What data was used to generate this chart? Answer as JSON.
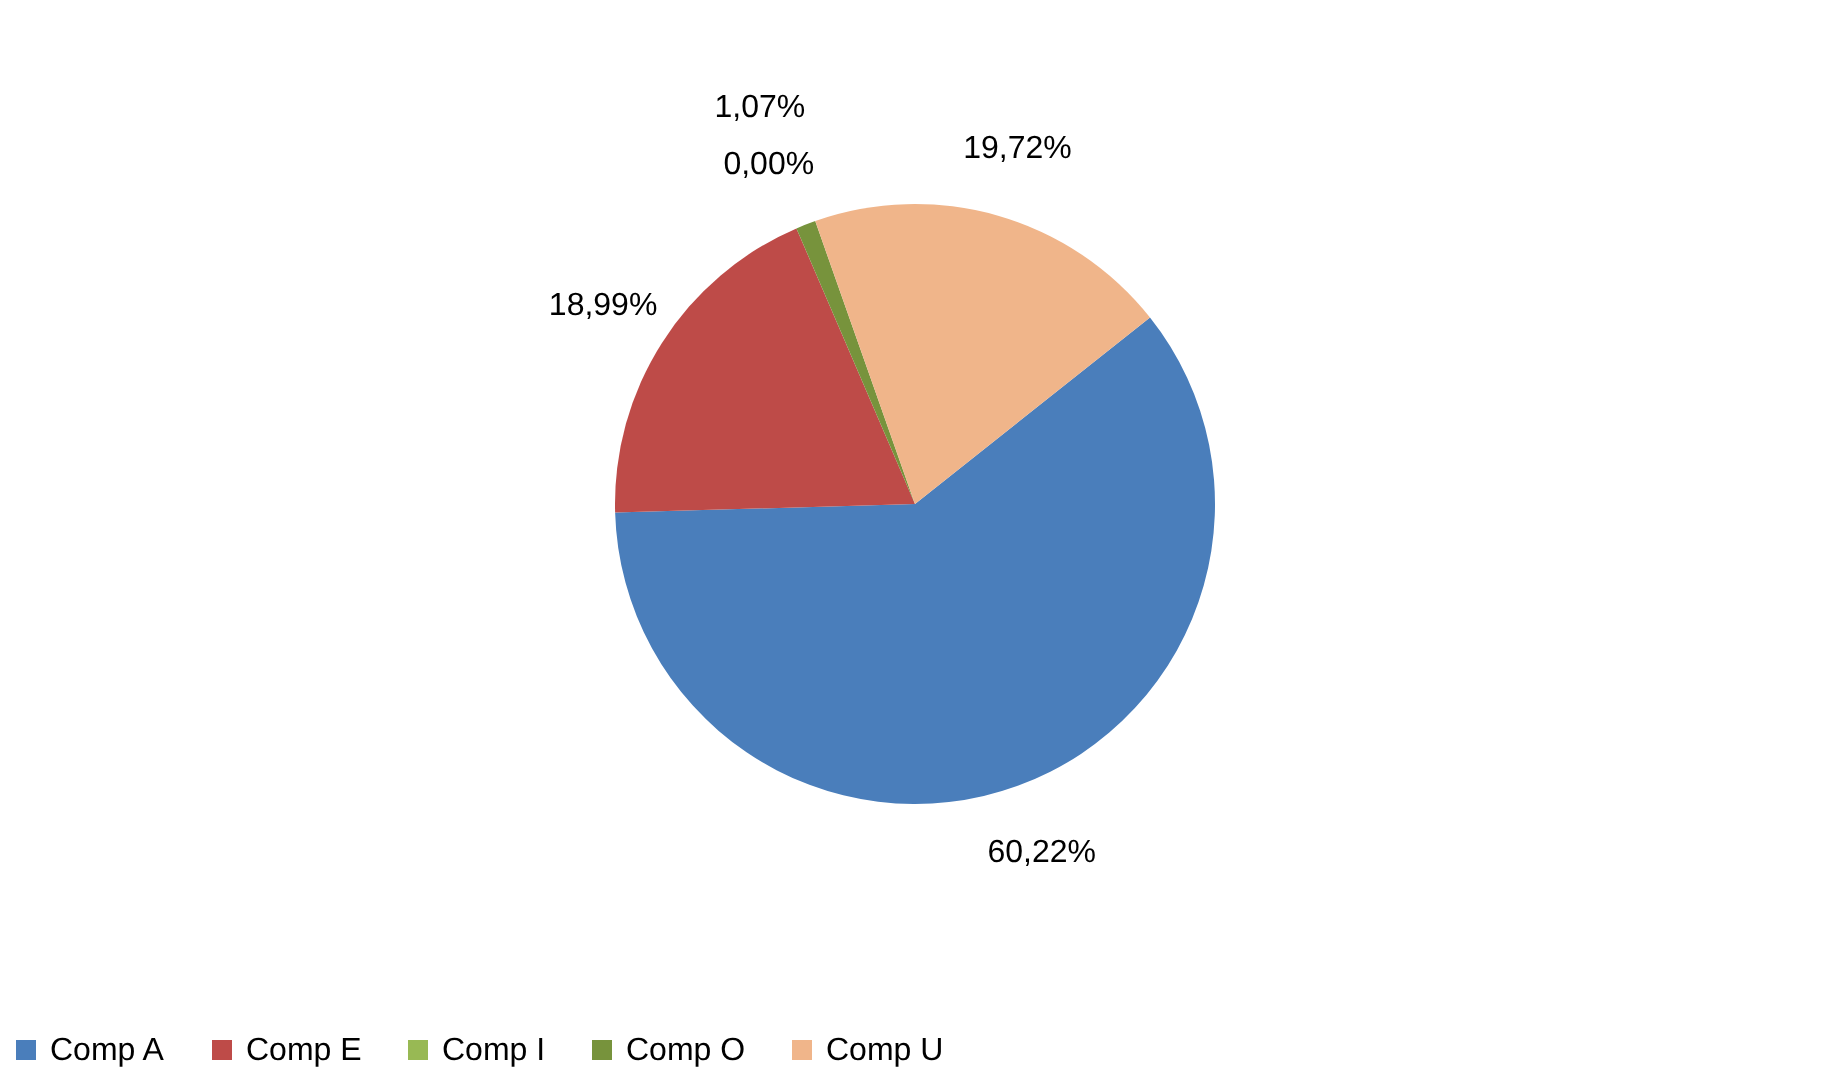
{
  "chart_data": {
    "type": "pie",
    "categories": [
      "Comp A",
      "Comp E",
      "Comp I",
      "Comp O",
      "Comp U"
    ],
    "values": [
      60.22,
      18.99,
      0.0,
      1.07,
      19.72
    ],
    "colors": [
      "#4a7ebb",
      "#be4b48",
      "#98b954",
      "#77933c",
      "#f0b58a"
    ],
    "value_labels": [
      "60,22%",
      "18,99%",
      "0,00%",
      "1,07%",
      "19,72%"
    ],
    "legend": "bottom"
  }
}
